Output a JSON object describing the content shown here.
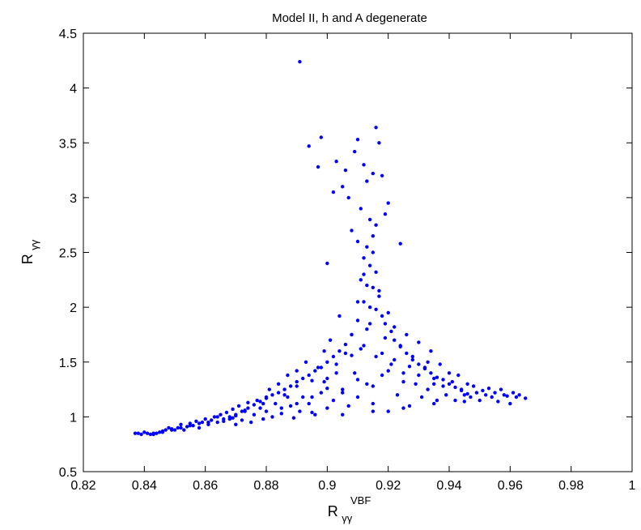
{
  "chart_data": {
    "type": "scatter",
    "title": "Model II, h and A degenerate",
    "xlabel": {
      "base": "R",
      "sub": "γγ",
      "sup": "VBF"
    },
    "ylabel": {
      "base": "R",
      "sub": "γγ"
    },
    "xlim": [
      0.82,
      1.0
    ],
    "ylim": [
      0.5,
      4.5
    ],
    "xticks": [
      "0.82",
      "0.84",
      "0.86",
      "0.88",
      "0.9",
      "0.92",
      "0.94",
      "0.96",
      "0.98",
      "1"
    ],
    "yticks": [
      "0.5",
      "1",
      "1.5",
      "2",
      "2.5",
      "3",
      "3.5",
      "4",
      "4.5"
    ],
    "grid": false,
    "marker_color": "#0000ff",
    "series": [
      {
        "points": [
          [
            0.837,
            0.85
          ],
          [
            0.838,
            0.85
          ],
          [
            0.84,
            0.86
          ],
          [
            0.841,
            0.85
          ],
          [
            0.842,
            0.84
          ],
          [
            0.843,
            0.84
          ],
          [
            0.844,
            0.85
          ],
          [
            0.845,
            0.86
          ],
          [
            0.846,
            0.87
          ],
          [
            0.847,
            0.88
          ],
          [
            0.848,
            0.9
          ],
          [
            0.849,
            0.89
          ],
          [
            0.85,
            0.88
          ],
          [
            0.851,
            0.9
          ],
          [
            0.852,
            0.93
          ],
          [
            0.853,
            0.88
          ],
          [
            0.854,
            0.91
          ],
          [
            0.855,
            0.94
          ],
          [
            0.856,
            0.92
          ],
          [
            0.857,
            0.96
          ],
          [
            0.858,
            0.9
          ],
          [
            0.859,
            0.95
          ],
          [
            0.86,
            0.98
          ],
          [
            0.861,
            0.93
          ],
          [
            0.862,
            0.97
          ],
          [
            0.863,
            1.0
          ],
          [
            0.864,
            0.95
          ],
          [
            0.865,
            1.02
          ],
          [
            0.866,
            0.96
          ],
          [
            0.867,
            1.04
          ],
          [
            0.868,
            0.98
          ],
          [
            0.869,
            1.07
          ],
          [
            0.87,
            0.93
          ],
          [
            0.87,
            1.01
          ],
          [
            0.871,
            1.1
          ],
          [
            0.872,
            0.97
          ],
          [
            0.873,
            1.05
          ],
          [
            0.874,
            1.13
          ],
          [
            0.875,
            0.95
          ],
          [
            0.876,
            1.02
          ],
          [
            0.877,
            1.15
          ],
          [
            0.878,
            1.08
          ],
          [
            0.879,
            0.98
          ],
          [
            0.88,
            1.18
          ],
          [
            0.88,
            1.05
          ],
          [
            0.881,
            1.25
          ],
          [
            0.882,
            1.0
          ],
          [
            0.883,
            1.12
          ],
          [
            0.884,
            1.3
          ],
          [
            0.885,
            1.03
          ],
          [
            0.886,
            1.2
          ],
          [
            0.887,
            1.38
          ],
          [
            0.888,
            1.1
          ],
          [
            0.889,
            0.99
          ],
          [
            0.89,
            1.28
          ],
          [
            0.89,
            1.42
          ],
          [
            0.891,
            1.05
          ],
          [
            0.892,
            1.18
          ],
          [
            0.893,
            1.5
          ],
          [
            0.894,
            1.12
          ],
          [
            0.895,
            1.33
          ],
          [
            0.896,
            1.02
          ],
          [
            0.897,
            1.45
          ],
          [
            0.898,
            1.22
          ],
          [
            0.899,
            1.6
          ],
          [
            0.9,
            1.08
          ],
          [
            0.9,
            1.35
          ],
          [
            0.901,
            1.7
          ],
          [
            0.902,
            1.15
          ],
          [
            0.903,
            1.48
          ],
          [
            0.904,
            1.92
          ],
          [
            0.905,
            1.25
          ],
          [
            0.906,
            1.58
          ],
          [
            0.907,
            1.1
          ],
          [
            0.908,
            1.75
          ],
          [
            0.909,
            1.4
          ],
          [
            0.91,
            2.05
          ],
          [
            0.91,
            1.18
          ],
          [
            0.911,
            1.62
          ],
          [
            0.912,
            2.3
          ],
          [
            0.913,
            1.3
          ],
          [
            0.914,
            1.85
          ],
          [
            0.915,
            2.5
          ],
          [
            0.915,
            1.12
          ],
          [
            0.916,
            1.55
          ],
          [
            0.917,
            2.15
          ],
          [
            0.918,
            1.38
          ],
          [
            0.919,
            1.72
          ],
          [
            0.92,
            1.05
          ],
          [
            0.92,
            1.95
          ],
          [
            0.921,
            1.48
          ],
          [
            0.922,
            1.82
          ],
          [
            0.923,
            1.2
          ],
          [
            0.924,
            1.65
          ],
          [
            0.925,
            1.4
          ],
          [
            0.926,
            1.75
          ],
          [
            0.927,
            1.1
          ],
          [
            0.928,
            1.55
          ],
          [
            0.929,
            1.3
          ],
          [
            0.93,
            1.68
          ],
          [
            0.931,
            1.18
          ],
          [
            0.932,
            1.45
          ],
          [
            0.933,
            1.25
          ],
          [
            0.934,
            1.6
          ],
          [
            0.935,
            1.35
          ],
          [
            0.936,
            1.15
          ],
          [
            0.937,
            1.48
          ],
          [
            0.938,
            1.28
          ],
          [
            0.939,
            1.2
          ],
          [
            0.94,
            1.4
          ],
          [
            0.941,
            1.32
          ],
          [
            0.942,
            1.15
          ],
          [
            0.943,
            1.38
          ],
          [
            0.944,
            1.25
          ],
          [
            0.945,
            1.2
          ],
          [
            0.946,
            1.3
          ],
          [
            0.947,
            1.18
          ],
          [
            0.948,
            1.28
          ],
          [
            0.949,
            1.22
          ],
          [
            0.95,
            1.15
          ],
          [
            0.951,
            1.24
          ],
          [
            0.952,
            1.2
          ],
          [
            0.953,
            1.26
          ],
          [
            0.954,
            1.18
          ],
          [
            0.955,
            1.22
          ],
          [
            0.956,
            1.14
          ],
          [
            0.957,
            1.25
          ],
          [
            0.958,
            1.2
          ],
          [
            0.959,
            1.19
          ],
          [
            0.96,
            1.12
          ],
          [
            0.961,
            1.22
          ],
          [
            0.962,
            1.18
          ],
          [
            0.963,
            1.2
          ],
          [
            0.965,
            1.17
          ],
          [
            0.891,
            4.24
          ],
          [
            0.898,
            3.55
          ],
          [
            0.894,
            3.47
          ],
          [
            0.91,
            3.53
          ],
          [
            0.909,
            3.42
          ],
          [
            0.916,
            3.64
          ],
          [
            0.912,
            3.3
          ],
          [
            0.917,
            3.5
          ],
          [
            0.903,
            3.33
          ],
          [
            0.897,
            3.28
          ],
          [
            0.906,
            3.25
          ],
          [
            0.918,
            3.2
          ],
          [
            0.905,
            3.1
          ],
          [
            0.902,
            3.05
          ],
          [
            0.907,
            3.0
          ],
          [
            0.915,
            3.22
          ],
          [
            0.913,
            3.15
          ],
          [
            0.92,
            2.95
          ],
          [
            0.919,
            2.85
          ],
          [
            0.911,
            2.9
          ],
          [
            0.914,
            2.8
          ],
          [
            0.908,
            2.7
          ],
          [
            0.916,
            2.75
          ],
          [
            0.924,
            2.58
          ],
          [
            0.9,
            2.4
          ],
          [
            0.91,
            2.6
          ],
          [
            0.913,
            2.55
          ],
          [
            0.915,
            2.65
          ],
          [
            0.912,
            2.45
          ],
          [
            0.914,
            2.38
          ],
          [
            0.916,
            2.32
          ],
          [
            0.911,
            2.25
          ],
          [
            0.913,
            2.2
          ],
          [
            0.915,
            2.18
          ],
          [
            0.917,
            2.1
          ],
          [
            0.912,
            2.05
          ],
          [
            0.914,
            2.0
          ],
          [
            0.916,
            1.98
          ],
          [
            0.918,
            1.92
          ],
          [
            0.91,
            1.88
          ],
          [
            0.919,
            1.85
          ],
          [
            0.913,
            1.8
          ],
          [
            0.921,
            1.78
          ],
          [
            0.908,
            1.75
          ],
          [
            0.922,
            1.7
          ],
          [
            0.906,
            1.66
          ],
          [
            0.924,
            1.64
          ],
          [
            0.904,
            1.6
          ],
          [
            0.926,
            1.58
          ],
          [
            0.902,
            1.55
          ],
          [
            0.928,
            1.52
          ],
          [
            0.9,
            1.5
          ],
          [
            0.93,
            1.48
          ],
          [
            0.898,
            1.45
          ],
          [
            0.932,
            1.44
          ],
          [
            0.896,
            1.42
          ],
          [
            0.934,
            1.4
          ],
          [
            0.894,
            1.38
          ],
          [
            0.936,
            1.36
          ],
          [
            0.892,
            1.35
          ],
          [
            0.938,
            1.34
          ],
          [
            0.89,
            1.32
          ],
          [
            0.94,
            1.3
          ],
          [
            0.888,
            1.28
          ],
          [
            0.942,
            1.27
          ],
          [
            0.886,
            1.25
          ],
          [
            0.944,
            1.24
          ],
          [
            0.884,
            1.22
          ],
          [
            0.882,
            1.2
          ],
          [
            0.946,
            1.21
          ],
          [
            0.88,
            1.17
          ],
          [
            0.878,
            1.14
          ],
          [
            0.876,
            1.11
          ],
          [
            0.874,
            1.08
          ],
          [
            0.872,
            1.05
          ],
          [
            0.87,
            1.02
          ],
          [
            0.868,
            1.0
          ],
          [
            0.866,
            0.98
          ],
          [
            0.89,
            1.12
          ],
          [
            0.895,
            1.18
          ],
          [
            0.905,
            1.22
          ],
          [
            0.915,
            1.28
          ],
          [
            0.925,
            1.32
          ],
          [
            0.935,
            1.3
          ],
          [
            0.9,
            1.26
          ],
          [
            0.91,
            1.34
          ],
          [
            0.92,
            1.42
          ],
          [
            0.93,
            1.38
          ],
          [
            0.885,
            1.08
          ],
          [
            0.895,
            1.04
          ],
          [
            0.905,
            1.02
          ],
          [
            0.915,
            1.05
          ],
          [
            0.925,
            1.08
          ],
          [
            0.935,
            1.12
          ],
          [
            0.945,
            1.14
          ],
          [
            0.912,
            1.65
          ],
          [
            0.918,
            1.58
          ],
          [
            0.922,
            1.52
          ],
          [
            0.908,
            1.56
          ],
          [
            0.903,
            1.4
          ],
          [
            0.927,
            1.46
          ],
          [
            0.933,
            1.5
          ],
          [
            0.899,
            1.32
          ],
          [
            0.887,
            1.18
          ],
          [
            0.879,
            1.12
          ],
          [
            0.873,
            1.06
          ],
          [
            0.869,
            0.99
          ],
          [
            0.864,
            1.0
          ],
          [
            0.861,
            0.95
          ],
          [
            0.858,
            0.94
          ],
          [
            0.855,
            0.92
          ],
          [
            0.852,
            0.9
          ],
          [
            0.849,
            0.88
          ],
          [
            0.846,
            0.86
          ],
          [
            0.843,
            0.85
          ],
          [
            0.839,
            0.84
          ]
        ]
      }
    ]
  }
}
